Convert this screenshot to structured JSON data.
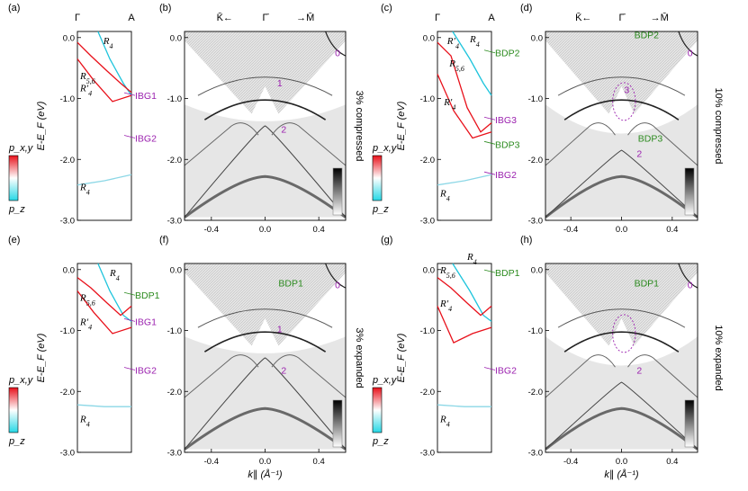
{
  "panel_labels": [
    "(a)",
    "(b)",
    "(c)",
    "(d)",
    "(e)",
    "(f)",
    "(g)",
    "(h)"
  ],
  "ylabel": "E-E_F (eV)",
  "bulk_yticks": [
    "0.0",
    "-1.0",
    "-2.0",
    "-3.0"
  ],
  "slab_yticks": [
    "0.0",
    "-1.0",
    "-2.0",
    "-3.0"
  ],
  "slab_xticks": [
    "-0.4",
    "0.0",
    "0.4"
  ],
  "slab_xlabel": "k∥ (Å⁻¹)",
  "kpath_top": {
    "left": "K̄←",
    "center": "Γ̄",
    "right": "→M̄"
  },
  "bulk_path": {
    "left": "Γ",
    "right": "A"
  },
  "colorbar": {
    "top": "p_x,y",
    "bottom": "p_z",
    "top_color": "#e8101a",
    "bottom_color": "#25d8e6"
  },
  "colors": {
    "label_purple": "#9a1fae",
    "label_green": "#2b8a1e",
    "band_red": "#e8101a",
    "band_cyan": "#1ec4dc"
  },
  "rows": [
    {
      "strain": "3% compressed",
      "left": {
        "levels": [
          "R4",
          "R5,6",
          "R′4",
          "R4"
        ],
        "labels": [
          {
            "text": "IBG1",
            "color": "purple"
          },
          {
            "text": "IBG2",
            "color": "purple"
          }
        ],
        "slab_labels": [
          {
            "text": "1",
            "color": "purple"
          },
          {
            "text": "2",
            "color": "purple"
          },
          {
            "text": "0",
            "color": "purple"
          }
        ]
      },
      "right": {
        "strain": "10% compressed",
        "levels": [
          "R′4",
          "R4",
          "R5,6",
          "R′4",
          "R4"
        ],
        "labels": [
          {
            "text": "BDP2",
            "color": "green"
          },
          {
            "text": "IBG3",
            "color": "purple"
          },
          {
            "text": "BDP3",
            "color": "green"
          },
          {
            "text": "IBG2",
            "color": "purple"
          }
        ],
        "slab_labels": [
          {
            "text": "BDP2",
            "color": "green"
          },
          {
            "text": "0",
            "color": "purple"
          },
          {
            "text": "3",
            "color": "purple"
          },
          {
            "text": "BDP3",
            "color": "green"
          },
          {
            "text": "2",
            "color": "purple"
          }
        ]
      }
    },
    {
      "strain": "3% expanded",
      "left": {
        "levels": [
          "R4",
          "R5,6",
          "R′4",
          "R4"
        ],
        "labels": [
          {
            "text": "BDP1",
            "color": "green"
          },
          {
            "text": "IBG1",
            "color": "purple"
          },
          {
            "text": "IBG2",
            "color": "purple"
          }
        ],
        "slab_labels": [
          {
            "text": "BDP1",
            "color": "green"
          },
          {
            "text": "0",
            "color": "purple"
          },
          {
            "text": "1",
            "color": "purple"
          },
          {
            "text": "2",
            "color": "purple"
          }
        ]
      },
      "right": {
        "strain": "10% expanded",
        "levels": [
          "R4",
          "R5,6",
          "R′4",
          "R4"
        ],
        "labels": [
          {
            "text": "BDP1",
            "color": "green"
          },
          {
            "text": "IBG2",
            "color": "purple"
          }
        ],
        "slab_labels": [
          {
            "text": "BDP1",
            "color": "green"
          },
          {
            "text": "0",
            "color": "purple"
          },
          {
            "text": "2",
            "color": "purple"
          }
        ]
      }
    }
  ],
  "chart_data": {
    "type": "line",
    "title": "",
    "xlabel": "k∥ (Å⁻¹)",
    "ylabel": "E-E_F (eV)",
    "ylim": [
      -3.0,
      0.1
    ],
    "xlim": [
      -0.6,
      0.6
    ]
  }
}
